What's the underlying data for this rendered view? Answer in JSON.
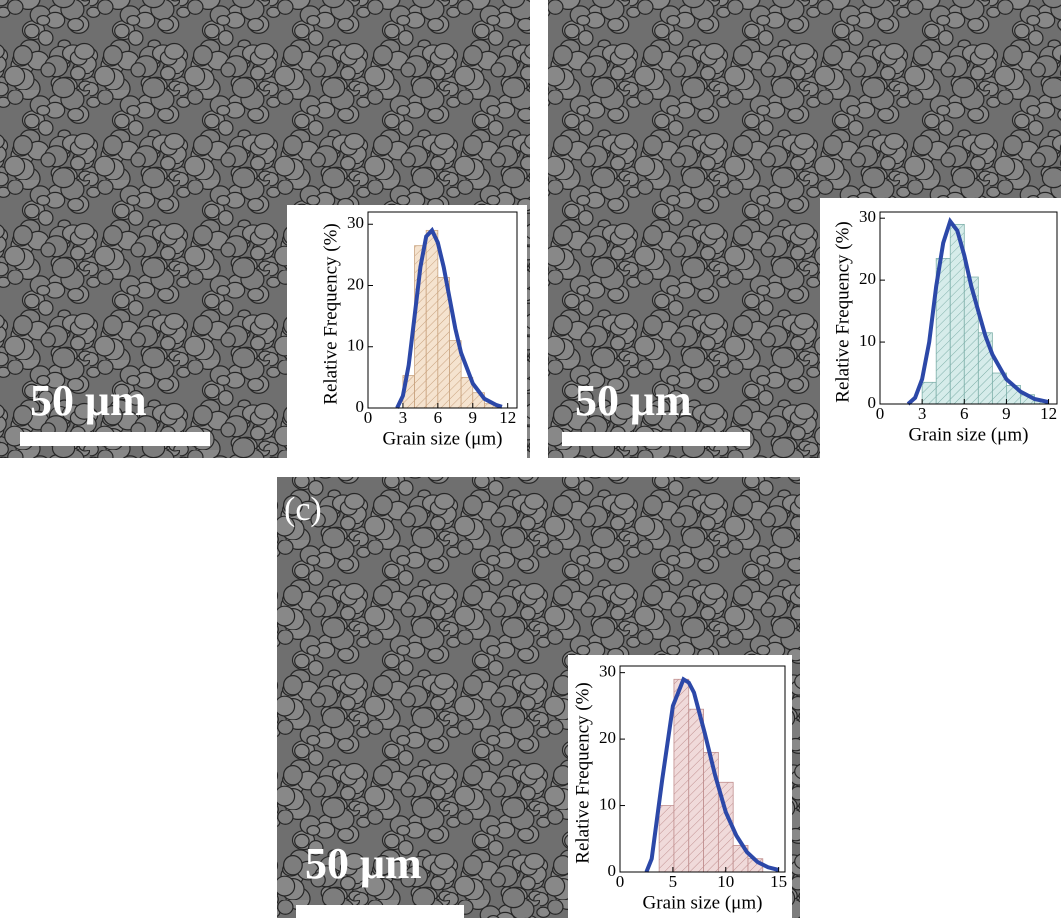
{
  "chart_data": [
    {
      "type": "histogram",
      "scale_label": "50 μm",
      "xlabel": "Grain size (μm)",
      "ylabel": "Relative Frequency (%)",
      "bins": [
        3,
        4,
        5,
        6,
        7,
        8,
        9,
        10,
        11
      ],
      "values": [
        5.3,
        26.5,
        29,
        21.3,
        11,
        5,
        2.5,
        0.7
      ],
      "color": "#f5e3cf",
      "edge_color": "#c9a37f",
      "fit_color": "#2c48a8",
      "fit": {
        "x": [
          2.5,
          3,
          3.5,
          4,
          4.5,
          5,
          5.5,
          6,
          6.5,
          7,
          7.5,
          8,
          9,
          10,
          11,
          11.5
        ],
        "values": [
          0,
          2,
          7,
          15,
          23,
          28,
          29,
          27,
          23,
          18,
          13,
          9,
          4,
          1.5,
          0.5,
          0.2
        ]
      },
      "xlim": [
        0,
        12.8
      ],
      "ylim": [
        0,
        32
      ],
      "xticks": [
        0,
        3,
        6,
        9,
        12
      ],
      "yticks": [
        0,
        10,
        20,
        30
      ]
    },
    {
      "type": "histogram",
      "scale_label": "50 μm",
      "xlabel": "Grain size (μm)",
      "ylabel": "Relative Frequency (%)",
      "bins": [
        3,
        4,
        5,
        6,
        7,
        8,
        9,
        10,
        11,
        12
      ],
      "values": [
        3.5,
        23.5,
        29,
        20.5,
        11.5,
        5,
        3,
        1.5,
        0.5
      ],
      "color": "#d6ecea",
      "edge_color": "#7fb0aa",
      "fit_color": "#2c48a8",
      "fit": {
        "x": [
          2,
          2.5,
          3,
          3.5,
          4,
          4.5,
          5,
          5.5,
          6,
          6.5,
          7,
          7.5,
          8,
          9,
          10,
          11,
          12
        ],
        "values": [
          0,
          1,
          4,
          10,
          19,
          26,
          29.5,
          28,
          24,
          19,
          15,
          11,
          8,
          4,
          2,
          0.8,
          0.3
        ]
      },
      "xlim": [
        0,
        12.6
      ],
      "ylim": [
        0,
        31
      ],
      "xticks": [
        0,
        3,
        6,
        9,
        12
      ],
      "yticks": [
        0,
        10,
        20,
        30
      ]
    },
    {
      "type": "histogram",
      "panel_label": "(c)",
      "scale_label": "50 μm",
      "xlabel": "Grain size (μm)",
      "ylabel": "Relative Frequency (%)",
      "bins": [
        3.7,
        5.1,
        6.5,
        7.9,
        9.3,
        10.7,
        12.1,
        13.5
      ],
      "values": [
        10,
        29,
        24.5,
        18,
        13.5,
        4,
        2
      ],
      "color": "#f0dada",
      "edge_color": "#c08f8f",
      "fit_color": "#2c48a8",
      "fit": {
        "x": [
          2.5,
          3,
          4,
          5,
          6,
          6.5,
          7,
          8,
          9,
          10,
          11,
          12,
          13,
          14,
          15
        ],
        "values": [
          0,
          2,
          14,
          25,
          29,
          28.5,
          27,
          21,
          14.5,
          9,
          5.5,
          3,
          1.5,
          0.7,
          0.3
        ]
      },
      "xlim": [
        0,
        15.6
      ],
      "ylim": [
        0,
        31
      ],
      "xticks": [
        0,
        5,
        10,
        15
      ],
      "yticks": [
        0,
        10,
        20,
        30
      ]
    }
  ]
}
